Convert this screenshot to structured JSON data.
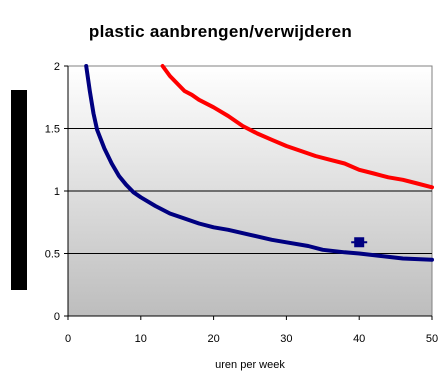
{
  "chart_data": {
    "type": "line",
    "title": "plastic aanbrengen/verwijderen",
    "xlabel": "uren per week",
    "ylabel": "",
    "xlim": [
      0,
      50
    ],
    "ylim": [
      0,
      2
    ],
    "xticks": [
      "0",
      "10",
      "20",
      "30",
      "40",
      "50"
    ],
    "yticks": [
      "0",
      "0.5",
      "1",
      "1.5",
      "2"
    ],
    "grid": "horizontal",
    "legend": "none",
    "background": "gradient gray",
    "series": [
      {
        "type": "line",
        "color": "#ff0000",
        "x": [
          13,
          14,
          15,
          16,
          17,
          18,
          20,
          22,
          24,
          26,
          28,
          30,
          32,
          34,
          36,
          38,
          40,
          42,
          44,
          46,
          48,
          50
        ],
        "y": [
          2.0,
          1.92,
          1.86,
          1.8,
          1.77,
          1.73,
          1.67,
          1.6,
          1.52,
          1.46,
          1.41,
          1.36,
          1.32,
          1.28,
          1.25,
          1.22,
          1.17,
          1.14,
          1.11,
          1.09,
          1.06,
          1.03
        ]
      },
      {
        "type": "line",
        "color": "#000080",
        "x": [
          2.5,
          3,
          3.5,
          4,
          5,
          6,
          7,
          8,
          9,
          10,
          12,
          14,
          16,
          18,
          20,
          22,
          25,
          28,
          30,
          33,
          35,
          38,
          40,
          43,
          46,
          50
        ],
        "y": [
          2.0,
          1.8,
          1.62,
          1.49,
          1.34,
          1.22,
          1.12,
          1.05,
          0.99,
          0.95,
          0.88,
          0.82,
          0.78,
          0.74,
          0.71,
          0.69,
          0.65,
          0.61,
          0.59,
          0.56,
          0.53,
          0.51,
          0.5,
          0.48,
          0.46,
          0.45
        ]
      },
      {
        "type": "scatter",
        "color": "#000080",
        "marker": "square",
        "x": [
          40
        ],
        "y": [
          0.59
        ]
      }
    ]
  }
}
